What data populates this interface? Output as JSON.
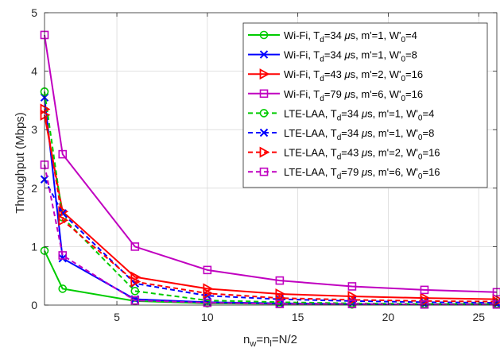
{
  "chart_data": {
    "type": "line",
    "title": "",
    "xlabel": "n_w=n_l=N/2",
    "ylabel": "Throughput (Mbps)",
    "xlim": [
      1,
      26
    ],
    "ylim": [
      0,
      5
    ],
    "xticks": [
      5,
      10,
      15,
      20,
      25
    ],
    "yticks": [
      0,
      1,
      2,
      3,
      4,
      5
    ],
    "grid": true,
    "legend_position": "top-right",
    "x": [
      1,
      2,
      6,
      10,
      14,
      18,
      22,
      26
    ],
    "series": [
      {
        "name": "Wi-Fi, T_d=34 μs, m'=1, W'_0=4",
        "color": "#00cc00",
        "dashed": false,
        "marker": "circle",
        "values": [
          0.93,
          0.28,
          0.07,
          0.03,
          0.02,
          0.01,
          0.01,
          0.01
        ]
      },
      {
        "name": "Wi-Fi, T_d=34 μs, m'=1, W'_0=8",
        "color": "#0000ff",
        "dashed": false,
        "marker": "x",
        "values": [
          3.55,
          0.8,
          0.1,
          0.05,
          0.03,
          0.02,
          0.01,
          0.01
        ]
      },
      {
        "name": "Wi-Fi, T_d=43 μs, m'=2, W'_0=16",
        "color": "#ff0000",
        "dashed": false,
        "marker": "triangle-right",
        "values": [
          3.25,
          1.6,
          0.48,
          0.28,
          0.19,
          0.15,
          0.12,
          0.1
        ]
      },
      {
        "name": "Wi-Fi, T_d=79 μs, m'=6, W'_0=16",
        "color": "#c000c0",
        "dashed": false,
        "marker": "square",
        "values": [
          4.62,
          2.58,
          1.0,
          0.6,
          0.42,
          0.32,
          0.26,
          0.22
        ]
      },
      {
        "name": "LTE-LAA, T_d=34 μs, m'=1, W'_0=4",
        "color": "#00cc00",
        "dashed": true,
        "marker": "circle",
        "values": [
          3.65,
          1.5,
          0.24,
          0.08,
          0.05,
          0.03,
          0.02,
          0.02
        ]
      },
      {
        "name": "LTE-LAA, T_d=34 μs, m'=1, W'_0=8",
        "color": "#0000ff",
        "dashed": true,
        "marker": "x",
        "values": [
          2.15,
          1.57,
          0.37,
          0.16,
          0.1,
          0.07,
          0.05,
          0.04
        ]
      },
      {
        "name": "LTE-LAA, T_d=43 μs, m'=2, W'_0=16",
        "color": "#ff0000",
        "dashed": true,
        "marker": "triangle-right",
        "values": [
          3.35,
          1.45,
          0.4,
          0.2,
          0.12,
          0.09,
          0.07,
          0.06
        ]
      },
      {
        "name": "LTE-LAA, T_d=79 μs, m'=6, W'_0=16",
        "color": "#c000c0",
        "dashed": true,
        "marker": "square",
        "values": [
          2.4,
          0.85,
          0.08,
          0.04,
          0.02,
          0.02,
          0.01,
          0.01
        ]
      }
    ]
  },
  "legend": {
    "entries": [
      {
        "prefix": "Wi-Fi, T",
        "sub": "d",
        "mid": "=34 ",
        "mu": "μ",
        "rest": "s, m'=1, W'",
        "sub2": "0",
        "end": "=4"
      },
      {
        "prefix": "Wi-Fi, T",
        "sub": "d",
        "mid": "=34 ",
        "mu": "μ",
        "rest": "s, m'=1, W'",
        "sub2": "0",
        "end": "=8"
      },
      {
        "prefix": "Wi-Fi, T",
        "sub": "d",
        "mid": "=43 ",
        "mu": "μ",
        "rest": "s, m'=2, W'",
        "sub2": "0",
        "end": "=16"
      },
      {
        "prefix": "Wi-Fi, T",
        "sub": "d",
        "mid": "=79 ",
        "mu": "μ",
        "rest": "s, m'=6, W'",
        "sub2": "0",
        "end": "=16"
      },
      {
        "prefix": "LTE-LAA, T",
        "sub": "d",
        "mid": "=34 ",
        "mu": "μ",
        "rest": "s, m'=1, W'",
        "sub2": "0",
        "end": "=4"
      },
      {
        "prefix": "LTE-LAA, T",
        "sub": "d",
        "mid": "=34 ",
        "mu": "μ",
        "rest": "s, m'=1, W'",
        "sub2": "0",
        "end": "=8"
      },
      {
        "prefix": "LTE-LAA, T",
        "sub": "d",
        "mid": "=43 ",
        "mu": "μ",
        "rest": "s, m'=2, W'",
        "sub2": "0",
        "end": "=16"
      },
      {
        "prefix": "LTE-LAA, T",
        "sub": "d",
        "mid": "=79 ",
        "mu": "μ",
        "rest": "s, m'=6, W'",
        "sub2": "0",
        "end": "=16"
      }
    ]
  },
  "axes": {
    "xlabel_main": "n",
    "xlabel_sub1": "w",
    "xlabel_mid": "=n",
    "xlabel_sub2": "l",
    "xlabel_end": "=N/2",
    "ylabel": "Throughput (Mbps)"
  }
}
